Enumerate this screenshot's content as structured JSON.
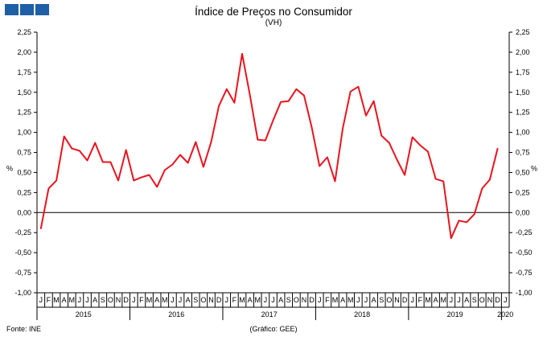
{
  "header": {
    "title": "Índice de Preços no Consumidor",
    "subtitle": "(VH)",
    "logo_color": "#1f5fa5"
  },
  "footer": {
    "source": "Fonte: INE",
    "credit": "(Gráfico: GEE)"
  },
  "chart_data": {
    "type": "line",
    "title": "Índice de Preços no Consumidor",
    "subtitle": "(VH)",
    "ylabel": "%",
    "ylabel_right": "%",
    "ylim": [
      -1.0,
      2.25
    ],
    "yticks": [
      "2,25",
      "2,00",
      "1,75",
      "1,50",
      "1,25",
      "1,00",
      "0,75",
      "0,50",
      "0,25",
      "0,00",
      "-0,25",
      "-0,50",
      "-0,75",
      "-1,00"
    ],
    "grid": false,
    "line_color": "#e8141e",
    "month_labels": [
      "J",
      "F",
      "M",
      "A",
      "M",
      "J",
      "J",
      "A",
      "S",
      "O",
      "N",
      "D",
      "J",
      "F",
      "M",
      "A",
      "M",
      "J",
      "J",
      "A",
      "S",
      "O",
      "N",
      "D",
      "J",
      "F",
      "M",
      "A",
      "M",
      "J",
      "J",
      "A",
      "S",
      "O",
      "N",
      "D",
      "J",
      "F",
      "M",
      "A",
      "M",
      "J",
      "J",
      "A",
      "S",
      "O",
      "N",
      "D",
      "J",
      "F",
      "M",
      "A",
      "M",
      "J",
      "J",
      "A",
      "S",
      "O",
      "N",
      "D",
      "J"
    ],
    "years": [
      "2015",
      "2016",
      "2017",
      "2018",
      "2019",
      "2020"
    ],
    "series": [
      {
        "values": [
          -0.2,
          0.3,
          0.4,
          0.95,
          0.8,
          0.77,
          0.65,
          0.87,
          0.63,
          0.63,
          0.4,
          0.78,
          0.4,
          0.44,
          0.47,
          0.32,
          0.53,
          0.6,
          0.72,
          0.62,
          0.88,
          0.57,
          0.88,
          1.33,
          1.54,
          1.37,
          1.98,
          1.47,
          0.91,
          0.9,
          1.15,
          1.38,
          1.39,
          1.54,
          1.46,
          1.06,
          0.58,
          0.69,
          0.39,
          1.05,
          1.51,
          1.57,
          1.21,
          1.39,
          0.96,
          0.87,
          0.66,
          0.47,
          0.94,
          0.84,
          0.76,
          0.42,
          0.39,
          -0.32,
          -0.1,
          -0.12,
          -0.02,
          0.3,
          0.41,
          0.8
        ]
      }
    ]
  }
}
